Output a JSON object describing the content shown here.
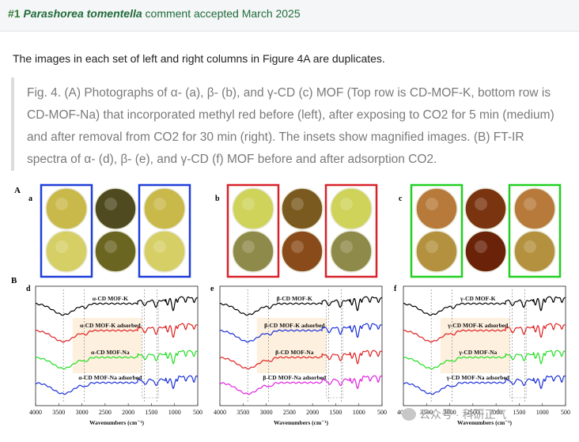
{
  "header": {
    "number": "#1",
    "species": "Parashorea tomentella",
    "rest": " comment accepted March 2025"
  },
  "comment": {
    "intro": "The images in each set of left and right columns in Figure 4A are duplicates."
  },
  "quote": {
    "caption": "Fig. 4. (A) Photographs of α- (a), β- (b), and γ-CD (c) MOF (Top row is CD-MOF-K, bottom row is CD-MOF-Na) that incorporated methyl red before (left), after exposing to CO2 for 5 min (medium) and after removal from CO2 for 30 min (right). The insets show magnified images. (B) FT-IR spectra of α- (d), β- (e), and γ-CD (f) MOF before and after adsorption CO2."
  },
  "figure": {
    "panel_A_label": "A",
    "panel_B_label": "B",
    "photo_panels": [
      {
        "label": "a",
        "box_color": "#1f3fd8",
        "cells": [
          "#c9b94a",
          "#4f4a1f",
          "#c9b94a",
          "#d6cf66",
          "#6b6522",
          "#d6cf66"
        ]
      },
      {
        "label": "b",
        "box_color": "#d8222a",
        "cells": [
          "#cfd35a",
          "#7b5a1f",
          "#cfd35a",
          "#8e8a4a",
          "#8a4b1a",
          "#8e8a4a"
        ]
      },
      {
        "label": "c",
        "box_color": "#22d022",
        "cells": [
          "#b87a3a",
          "#7a3510",
          "#b87a3a",
          "#b3913e",
          "#6a2208",
          "#b3913e"
        ]
      }
    ]
  },
  "chart_data": [
    {
      "type": "line",
      "panel": "d",
      "xlabel": "Wavenumbers (cm⁻¹)",
      "xlim": [
        4000,
        500
      ],
      "x_ticks": [
        "4000",
        "3500",
        "3000",
        "2500",
        "2000",
        "1500",
        "1000",
        "500"
      ],
      "series": [
        {
          "name": "α-CD MOF-K",
          "color": "#000000"
        },
        {
          "name": "α-CD MOF-K adsorbed",
          "color": "#e02020"
        },
        {
          "name": "α-CD MOF-Na",
          "color": "#22dd22"
        },
        {
          "name": "α-CD MOF-Na adsorbed",
          "color": "#1a2fd8"
        }
      ]
    },
    {
      "type": "line",
      "panel": "e",
      "xlabel": "Wavenumbers (cm⁻¹)",
      "xlim": [
        4000,
        500
      ],
      "x_ticks": [
        "4000",
        "3500",
        "3000",
        "2500",
        "2000",
        "1500",
        "1000",
        "500"
      ],
      "series": [
        {
          "name": "β-CD MOF-K",
          "color": "#000000"
        },
        {
          "name": "β-CD MOF-K adsorbed",
          "color": "#1a2fd8"
        },
        {
          "name": "β-CD MOF-Na",
          "color": "#e02020"
        },
        {
          "name": "β-CD MOF-Na adsorbed",
          "color": "#e020e0"
        }
      ]
    },
    {
      "type": "line",
      "panel": "f",
      "xlabel": "Wavenumbers (cm⁻¹)",
      "xlim": [
        4000,
        500
      ],
      "x_ticks": [
        "4000",
        "3500",
        "3000",
        "2500",
        "2000",
        "1500",
        "1000",
        "500"
      ],
      "series": [
        {
          "name": "γ-CD MOF-K",
          "color": "#000000"
        },
        {
          "name": "γ-CD MOF-K adsorbed",
          "color": "#e02020"
        },
        {
          "name": "γ-CD MOF-Na",
          "color": "#22dd22"
        },
        {
          "name": "γ-CD MOF-Na adsorbed",
          "color": "#1a2fd8"
        }
      ]
    }
  ],
  "watermark": {
    "text": "公众号 · 科研正气"
  }
}
